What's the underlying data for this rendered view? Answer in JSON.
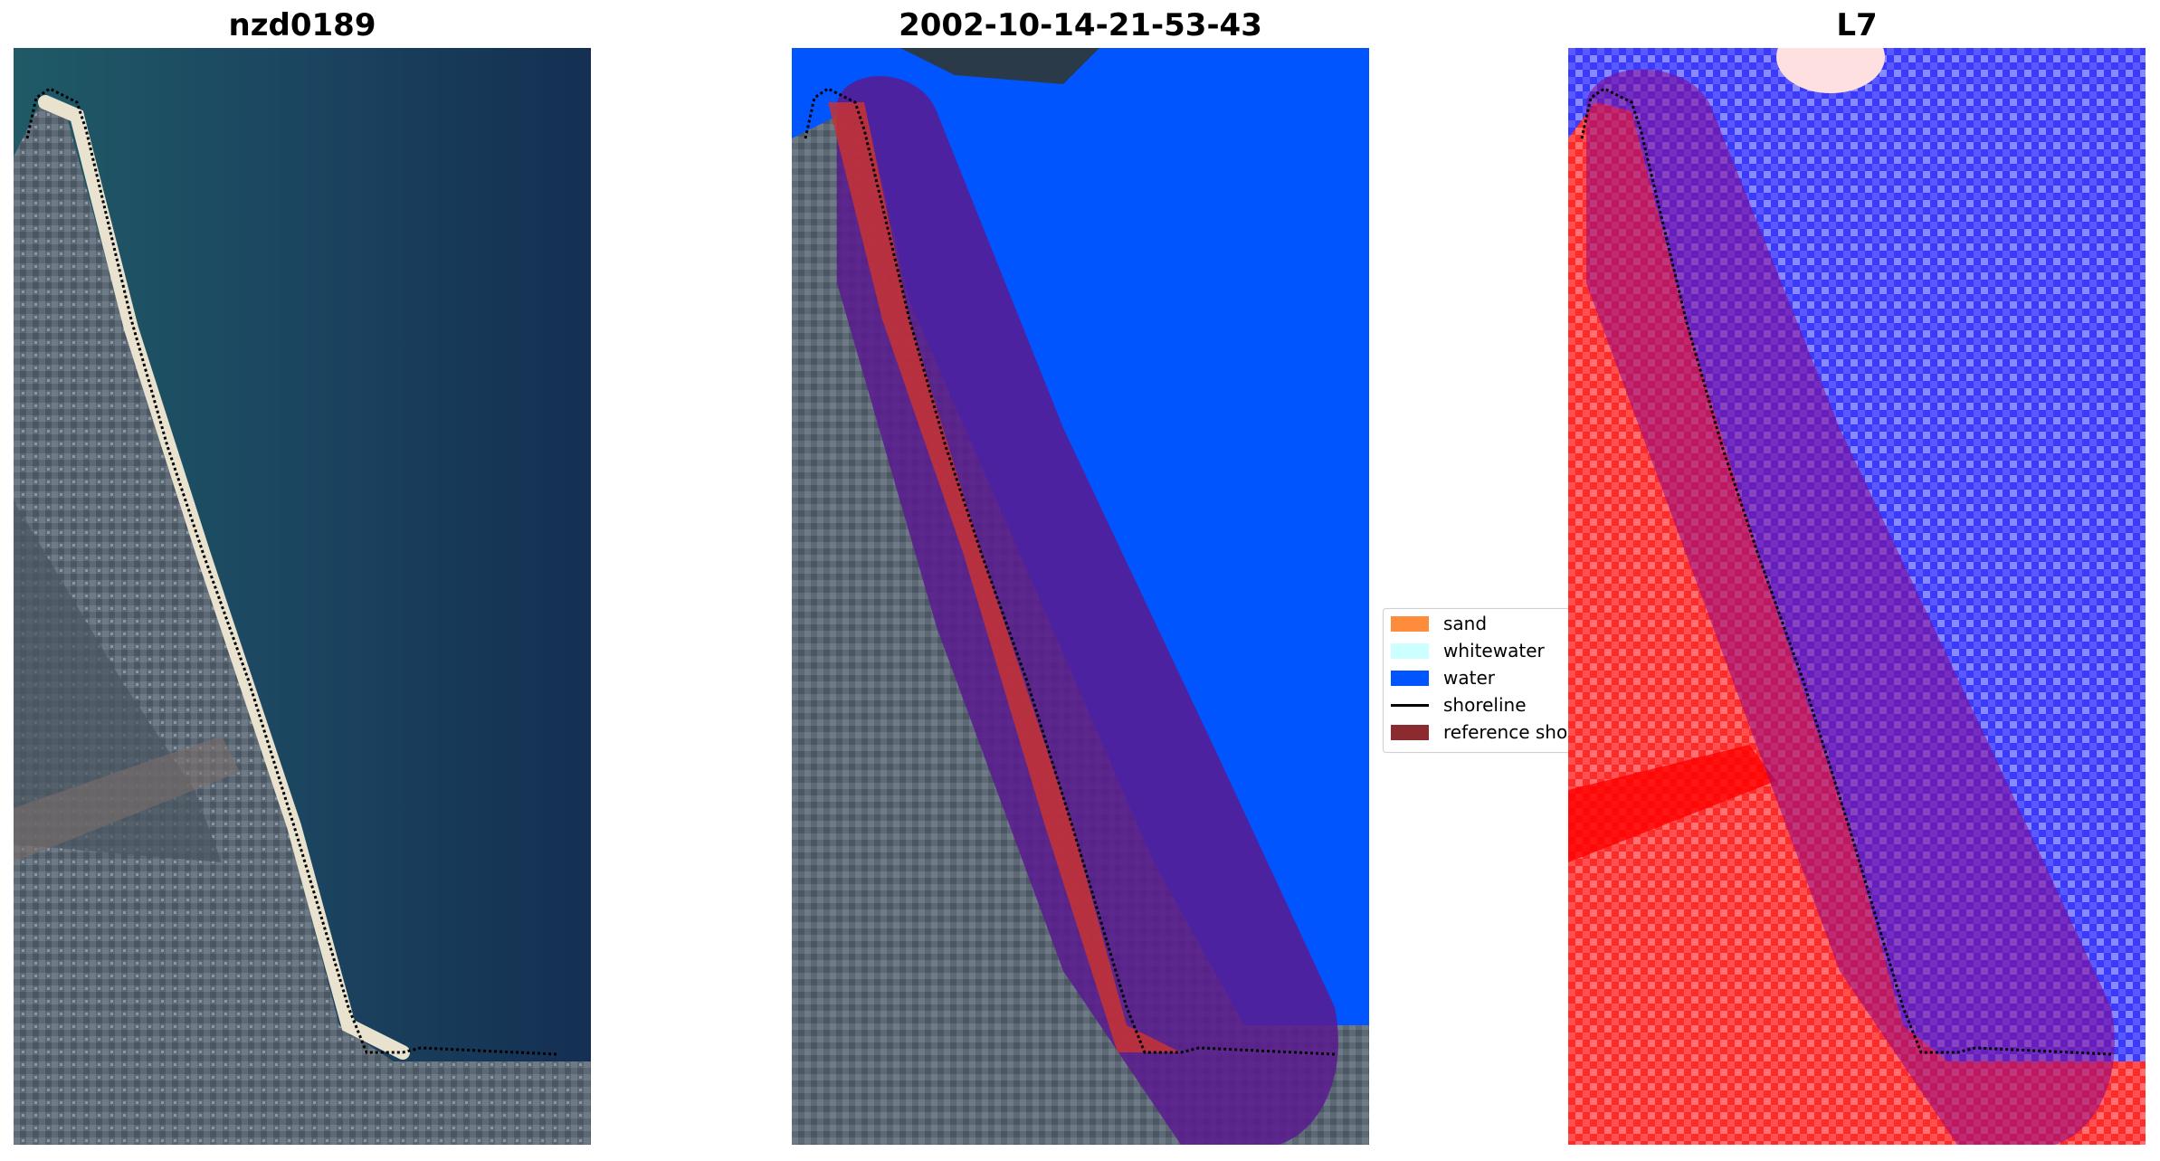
{
  "panels": [
    {
      "title": "nzd0189"
    },
    {
      "title": "2002-10-14-21-53-43"
    },
    {
      "title": "L7"
    }
  ],
  "legend": {
    "items": [
      {
        "label": "sand",
        "color": "#ff8c3a",
        "kind": "patch"
      },
      {
        "label": "whitewater",
        "color": "#ccffff",
        "kind": "patch"
      },
      {
        "label": "water",
        "color": "#0055ff",
        "kind": "patch"
      },
      {
        "label": "shoreline",
        "color": "#000000",
        "kind": "line"
      },
      {
        "label": "reference shoreline buffer",
        "color": "#8b2a2f",
        "kind": "patch"
      }
    ]
  },
  "colors": {
    "water_class": "#0055ff",
    "buffer_overlay": "#6a0d8f",
    "sand_overlay": "#c83232",
    "index_land": "#ff2020",
    "index_water": "#3030ff"
  }
}
